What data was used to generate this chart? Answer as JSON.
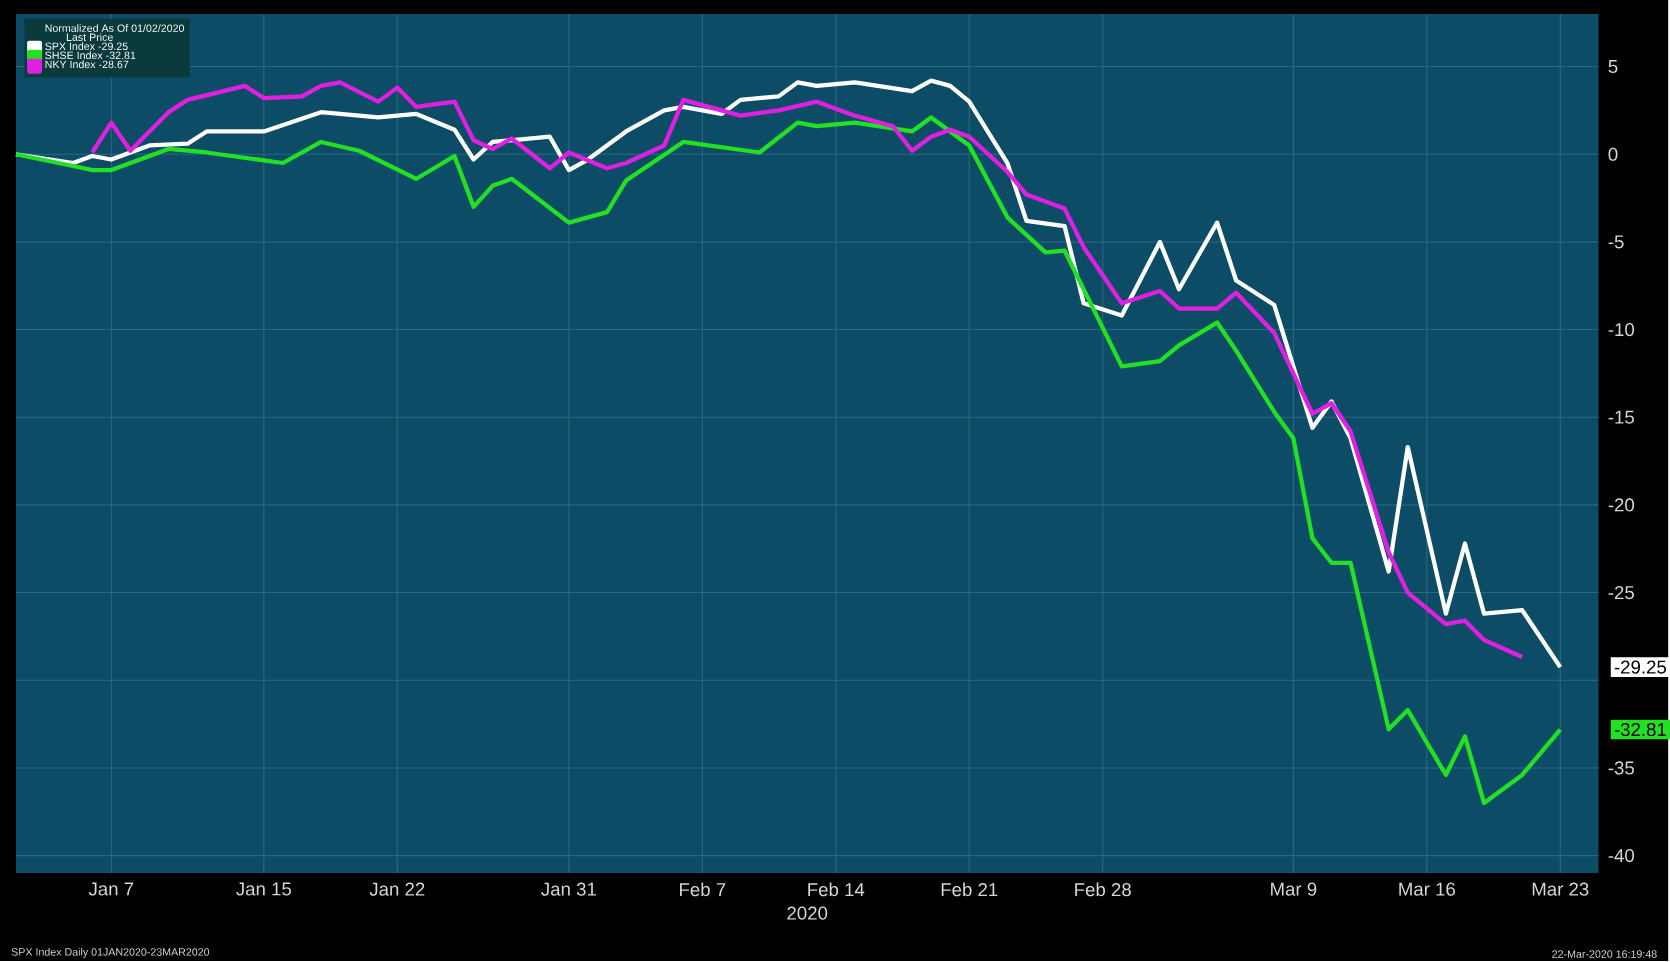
{
  "chart_data": {
    "type": "line",
    "xlabel": "2020",
    "legend_title": "Normalized As Of 01/02/2020",
    "annotations": [
      "Last Price",
      "SPX Index Daily 01JAN2020-23MAR2020",
      "22-Mar-2020 16:19:48",
      {
        "text": "-29.25",
        "x": "2020-03-23",
        "y": -29.25
      },
      {
        "text": "-32.81",
        "x": "2020-03-23",
        "y": -32.81
      }
    ],
    "xlim": [
      "2020-01-02",
      "2020-03-25"
    ],
    "ylim": [
      -41,
      8
    ],
    "xticks": [
      {
        "value": "2020-01-07",
        "label": "Jan 7"
      },
      {
        "value": "2020-01-15",
        "label": "Jan 15"
      },
      {
        "value": "2020-01-22",
        "label": "Jan 22"
      },
      {
        "value": "2020-01-31",
        "label": "Jan 31"
      },
      {
        "value": "2020-02-07",
        "label": "Feb 7"
      },
      {
        "value": "2020-02-14",
        "label": "Feb 14"
      },
      {
        "value": "2020-02-21",
        "label": "Feb 21"
      },
      {
        "value": "2020-02-28",
        "label": "Feb 28"
      },
      {
        "value": "2020-03-09",
        "label": "Mar 9"
      },
      {
        "value": "2020-03-16",
        "label": "Mar 16"
      },
      {
        "value": "2020-03-23",
        "label": "Mar 23"
      }
    ],
    "yticks": [
      5,
      0,
      -5,
      -10,
      -15,
      -20,
      -25,
      {
        "value": -30,
        "label": null
      },
      -35,
      -40
    ],
    "grid": true,
    "legend": "top left",
    "marker": "none",
    "line_style": "solid",
    "series": [
      {
        "name": "SPX Index -29.25",
        "color": "#ffffff",
        "x": [
          "2020-01-02",
          "2020-01-05",
          "2020-01-06",
          "2020-01-07",
          "2020-01-09",
          "2020-01-11",
          "2020-01-12",
          "2020-01-15",
          "2020-01-18",
          "2020-01-21",
          "2020-01-23",
          "2020-01-25",
          "2020-01-26",
          "2020-01-27",
          "2020-01-30",
          "2020-01-31",
          "2020-02-01",
          "2020-02-03",
          "2020-02-05",
          "2020-02-06",
          "2020-02-08",
          "2020-02-09",
          "2020-02-11",
          "2020-02-12",
          "2020-02-13",
          "2020-02-15",
          "2020-02-18",
          "2020-02-19",
          "2020-02-20",
          "2020-02-21",
          "2020-02-23",
          "2020-02-24",
          "2020-02-26",
          "2020-02-27",
          "2020-02-29",
          "2020-03-02",
          "2020-03-03",
          "2020-03-05",
          "2020-03-06",
          "2020-03-08",
          "2020-03-10",
          "2020-03-11",
          "2020-03-12",
          "2020-03-14",
          "2020-03-15",
          "2020-03-17",
          "2020-03-18",
          "2020-03-19",
          "2020-03-21",
          "2020-03-23"
        ],
        "values": [
          0,
          -0.5,
          -0.1,
          -0.3,
          0.5,
          0.6,
          1.3,
          1.3,
          2.4,
          2.1,
          2.3,
          1.4,
          -0.3,
          0.7,
          1.0,
          -0.9,
          -0.3,
          1.3,
          2.5,
          2.7,
          2.3,
          3.1,
          3.3,
          4.1,
          3.9,
          4.1,
          3.6,
          4.2,
          3.9,
          3.0,
          -0.5,
          -3.8,
          -4.1,
          -8.5,
          -9.2,
          -5,
          -7.7,
          -3.9,
          -7.2,
          -8.6,
          -15.6,
          -14.1,
          -16.2,
          -23.8,
          -16.7,
          -26.2,
          -22.2,
          -26.2,
          -26,
          -29.25
        ]
      },
      {
        "name": "SHSE Index -32.81",
        "color": "#22e022",
        "x": [
          "2020-01-02",
          "2020-01-06",
          "2020-01-07",
          "2020-01-10",
          "2020-01-12",
          "2020-01-16",
          "2020-01-18",
          "2020-01-20",
          "2020-01-23",
          "2020-01-25",
          "2020-01-26",
          "2020-01-27",
          "2020-01-28",
          "2020-01-31",
          "2020-02-02",
          "2020-02-03",
          "2020-02-06",
          "2020-02-10",
          "2020-02-12",
          "2020-02-13",
          "2020-02-15",
          "2020-02-18",
          "2020-02-19",
          "2020-02-21",
          "2020-02-23",
          "2020-02-25",
          "2020-02-26",
          "2020-02-29",
          "2020-03-02",
          "2020-03-03",
          "2020-03-05",
          "2020-03-06",
          "2020-03-08",
          "2020-03-09",
          "2020-03-10",
          "2020-03-11",
          "2020-03-12",
          "2020-03-14",
          "2020-03-15",
          "2020-03-17",
          "2020-03-18",
          "2020-03-19",
          "2020-03-21",
          "2020-03-23"
        ],
        "values": [
          0,
          -0.9,
          -0.9,
          0.3,
          0.1,
          -0.5,
          0.7,
          0.2,
          -1.4,
          -0.1,
          -3,
          -1.8,
          -1.4,
          -3.9,
          -3.3,
          -1.5,
          0.7,
          0.1,
          1.8,
          1.6,
          1.8,
          1.3,
          2.1,
          0.5,
          -3.6,
          -5.6,
          -5.5,
          -12.1,
          -11.8,
          -10.9,
          -9.6,
          -11.2,
          -14.7,
          -16.2,
          -21.9,
          -23.3,
          -23.3,
          -32.8,
          -31.7,
          -35.4,
          -33.2,
          -37,
          -35.4,
          -32.81
        ]
      },
      {
        "name": "NKY Index -28.67",
        "color": "#e020e0",
        "x": [
          "2020-01-06",
          "2020-01-07",
          "2020-01-08",
          "2020-01-10",
          "2020-01-11",
          "2020-01-14",
          "2020-01-15",
          "2020-01-17",
          "2020-01-18",
          "2020-01-19",
          "2020-01-21",
          "2020-01-22",
          "2020-01-23",
          "2020-01-25",
          "2020-01-26",
          "2020-01-27",
          "2020-01-28",
          "2020-01-30",
          "2020-01-31",
          "2020-02-02",
          "2020-02-03",
          "2020-02-05",
          "2020-02-06",
          "2020-02-08",
          "2020-02-09",
          "2020-02-11",
          "2020-02-13",
          "2020-02-15",
          "2020-02-17",
          "2020-02-18",
          "2020-02-19",
          "2020-02-20",
          "2020-02-21",
          "2020-02-23",
          "2020-02-24",
          "2020-02-26",
          "2020-02-27",
          "2020-02-29",
          "2020-03-02",
          "2020-03-03",
          "2020-03-05",
          "2020-03-06",
          "2020-03-08",
          "2020-03-10",
          "2020-03-11",
          "2020-03-12",
          "2020-03-14",
          "2020-03-15",
          "2020-03-17",
          "2020-03-18",
          "2020-03-19",
          "2020-03-21"
        ],
        "values": [
          0.1,
          1.8,
          0.2,
          2.4,
          3.1,
          3.9,
          3.2,
          3.3,
          3.9,
          4.1,
          3.0,
          3.8,
          2.7,
          3.0,
          0.8,
          0.3,
          0.9,
          -0.8,
          0.1,
          -0.8,
          -0.5,
          0.5,
          3.1,
          2.5,
          2.2,
          2.5,
          3.0,
          2.2,
          1.6,
          0.2,
          1.0,
          1.4,
          1.0,
          -1.0,
          -2.3,
          -3.1,
          -5.3,
          -8.5,
          -7.8,
          -8.8,
          -8.8,
          -7.9,
          -10.2,
          -14.8,
          -14.2,
          -15.8,
          -22.7,
          -25,
          -26.8,
          -26.6,
          -27.7,
          -28.67
        ]
      }
    ]
  }
}
